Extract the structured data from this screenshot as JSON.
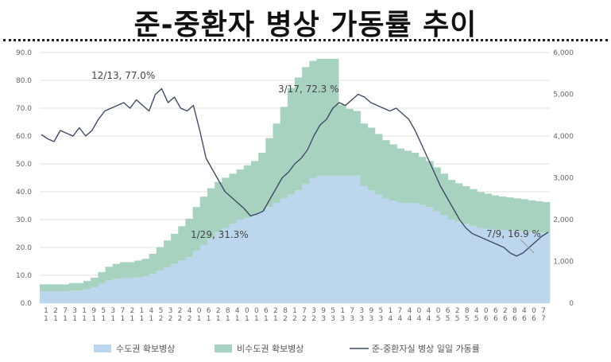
{
  "title": "준-중환자 병상 가동률 추이",
  "chart_data": {
    "type": "bar+line",
    "y_left": {
      "min": 0,
      "max": 90,
      "step": 10,
      "ticks": [
        "0.0",
        "10.0",
        "20.0",
        "30.0",
        "40.0",
        "50.0",
        "60.0",
        "70.0",
        "80.0",
        "90.0"
      ]
    },
    "y_right": {
      "min": 0,
      "max": 6000,
      "step": 1000,
      "ticks": [
        "0",
        "1,000",
        "2,000",
        "3,000",
        "4,000",
        "5,000",
        "6,000"
      ]
    },
    "x_labels": [
      [
        "1",
        "1"
      ],
      [
        "2",
        "1"
      ],
      [
        "7",
        "1"
      ],
      [
        "3",
        "1"
      ],
      [
        "1",
        "1"
      ],
      [
        "9",
        "1"
      ],
      [
        "5",
        "1"
      ],
      [
        "3",
        "1"
      ],
      [
        "7",
        "1"
      ],
      [
        "2",
        "1"
      ],
      [
        "1",
        "1"
      ],
      [
        "4",
        "1"
      ],
      [
        "5",
        "2"
      ],
      [
        "3",
        "2"
      ],
      [
        "2",
        "2"
      ],
      [
        "4",
        "2"
      ],
      [
        "0",
        "1"
      ],
      [
        "6",
        "1"
      ],
      [
        "2",
        "1"
      ],
      [
        "8",
        "1"
      ],
      [
        "4",
        "1"
      ],
      [
        "0",
        "1"
      ],
      [
        "0",
        "1"
      ],
      [
        "6",
        "1"
      ],
      [
        "2",
        "1"
      ],
      [
        "8",
        "2"
      ],
      [
        "1",
        "2"
      ],
      [
        "7",
        "2"
      ],
      [
        "3",
        "2"
      ],
      [
        "9",
        "3"
      ],
      [
        "5",
        "3"
      ],
      [
        "1",
        "3"
      ],
      [
        "7",
        "3"
      ],
      [
        "3",
        "3"
      ],
      [
        "9",
        "3"
      ],
      [
        "5",
        "3"
      ],
      [
        "1",
        "4"
      ],
      [
        "7",
        "4"
      ],
      [
        "4",
        "4"
      ],
      [
        "0",
        "4"
      ],
      [
        "4",
        "4"
      ],
      [
        "0",
        "5"
      ],
      [
        "6",
        "5"
      ],
      [
        "2",
        "5"
      ],
      [
        "8",
        "5"
      ],
      [
        "4",
        "5"
      ],
      [
        "0",
        "6"
      ],
      [
        "6",
        "6"
      ],
      [
        "2",
        "6"
      ],
      [
        "8",
        "6"
      ],
      [
        "4",
        "6"
      ],
      [
        "0",
        "6"
      ],
      [
        "7",
        "7"
      ]
    ],
    "series": [
      {
        "name": "수도권 확보병상",
        "axis": "right",
        "color": "#bcd6ee",
        "values": [
          280,
          280,
          280,
          280,
          300,
          300,
          330,
          380,
          460,
          540,
          580,
          600,
          600,
          620,
          640,
          700,
          780,
          860,
          940,
          1020,
          1100,
          1250,
          1400,
          1550,
          1700,
          1800,
          1900,
          2000,
          2050,
          2100,
          2200,
          2300,
          2400,
          2500,
          2600,
          2700,
          2850,
          3000,
          3050,
          3050,
          3050,
          3050,
          3050,
          3050,
          2800,
          2700,
          2600,
          2500,
          2450,
          2400,
          2400,
          2400,
          2350,
          2300,
          2200,
          2100,
          2000,
          1950,
          1900,
          1850,
          1800,
          1780,
          1760,
          1750,
          1740,
          1730,
          1720,
          1700,
          1690,
          1680
        ]
      },
      {
        "name": "비수도권 확보병상",
        "axis": "right",
        "color": "#a6d2bf",
        "values": [
          170,
          170,
          170,
          170,
          180,
          180,
          200,
          230,
          280,
          330,
          360,
          380,
          380,
          400,
          420,
          480,
          560,
          640,
          720,
          820,
          920,
          1050,
          1150,
          1200,
          1200,
          1200,
          1200,
          1200,
          1250,
          1300,
          1400,
          1650,
          1900,
          2200,
          2550,
          2700,
          2800,
          2800,
          2800,
          2800,
          2800,
          1700,
          1600,
          1550,
          1500,
          1500,
          1450,
          1400,
          1350,
          1300,
          1250,
          1200,
          1150,
          1100,
          1050,
          1000,
          950,
          920,
          900,
          880,
          860,
          840,
          820,
          800,
          790,
          780,
          770,
          760,
          750,
          740
        ]
      },
      {
        "name": "준-중환자실 병상 일일 가동률",
        "axis": "left",
        "color": "#3f4a63",
        "values": [
          60.5,
          59,
          58,
          62,
          61,
          60,
          63,
          60,
          62,
          66,
          69,
          70,
          71,
          72,
          70,
          73,
          71,
          69,
          75,
          77,
          72,
          74,
          70,
          69,
          71,
          62,
          52,
          48,
          44,
          40,
          38,
          36,
          34,
          31.3,
          32,
          33,
          37,
          41,
          45,
          47,
          50,
          52,
          55,
          60,
          64,
          66,
          70,
          72,
          71,
          73,
          75,
          74,
          72,
          71,
          70,
          69,
          70,
          68,
          66,
          62,
          57,
          52,
          47,
          42,
          38,
          34,
          30,
          27,
          25,
          24,
          23,
          22,
          21,
          20,
          18,
          16.9,
          18,
          20,
          22,
          24,
          25.5
        ]
      }
    ],
    "annotations": [
      {
        "text": "12/13, 77.0%"
      },
      {
        "text": "3/17, 72.3 %"
      },
      {
        "text": "1/29, 31.3%"
      },
      {
        "text": "7/9, 16.9 %"
      }
    ]
  }
}
